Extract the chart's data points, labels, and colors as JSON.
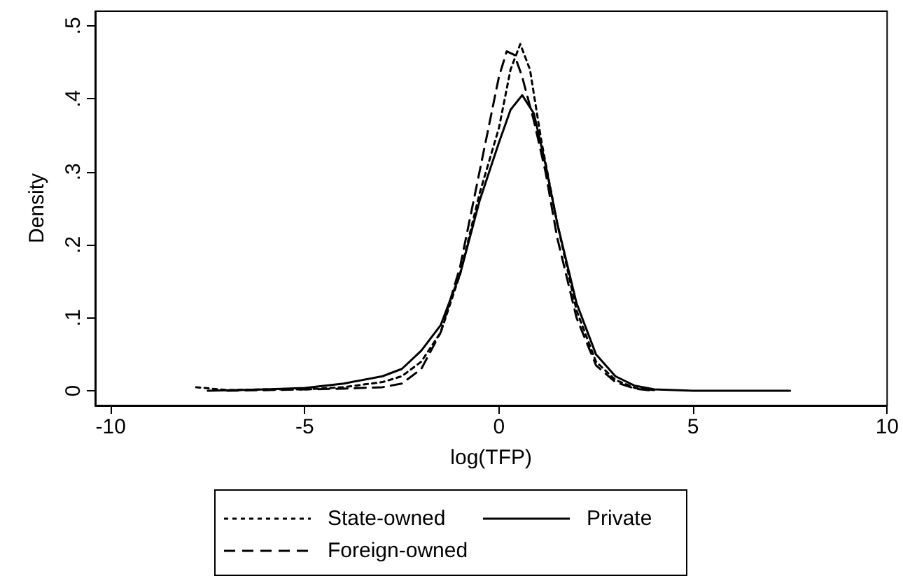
{
  "chart_data": {
    "type": "line",
    "xlabel": "log(TFP)",
    "ylabel": "Density",
    "xlim": [
      -10.4,
      10
    ],
    "xticks": [
      -10,
      -5,
      0,
      5,
      10
    ],
    "ylim": [
      -0.02,
      0.52
    ],
    "yticks": [
      {
        "value": 0,
        "label": "0"
      },
      {
        "value": 0.1,
        "label": ".1"
      },
      {
        "value": 0.2,
        "label": ".2"
      },
      {
        "value": 0.3,
        "label": ".3"
      },
      {
        "value": 0.4,
        "label": ".4"
      },
      {
        "value": 0.5,
        "label": ".5"
      }
    ],
    "grid": false,
    "legend": "bottom",
    "marker": "none",
    "series": [
      {
        "name": "State-owned",
        "color": "#000000",
        "line_style": "dotted",
        "x": [
          -7.8,
          -7,
          -6,
          -5,
          -4,
          -3,
          -2.5,
          -2,
          -1.5,
          -1,
          -0.5,
          0,
          0.3,
          0.55,
          0.8,
          1.1,
          1.5,
          2,
          2.5,
          3,
          3.5,
          4
        ],
        "values": [
          0.005,
          0.001,
          0.002,
          0.002,
          0.005,
          0.012,
          0.02,
          0.04,
          0.08,
          0.16,
          0.27,
          0.36,
          0.44,
          0.475,
          0.44,
          0.34,
          0.23,
          0.11,
          0.04,
          0.015,
          0.004,
          0.001
        ]
      },
      {
        "name": "Private",
        "color": "#000000",
        "line_style": "solid",
        "x": [
          -7.5,
          -6,
          -5,
          -4,
          -3,
          -2.5,
          -2,
          -1.5,
          -1,
          -0.5,
          0,
          0.3,
          0.6,
          0.9,
          1.2,
          1.5,
          2,
          2.5,
          3,
          3.5,
          4,
          5,
          7.5
        ],
        "values": [
          0,
          0.002,
          0.004,
          0.01,
          0.02,
          0.03,
          0.055,
          0.09,
          0.16,
          0.26,
          0.34,
          0.385,
          0.405,
          0.38,
          0.31,
          0.23,
          0.12,
          0.05,
          0.02,
          0.007,
          0.002,
          0,
          0
        ]
      },
      {
        "name": "Foreign-owned",
        "color": "#000000",
        "line_style": "dashed",
        "x": [
          -7,
          -5,
          -4,
          -3,
          -2.5,
          -2,
          -1.5,
          -1,
          -0.5,
          0,
          0.2,
          0.4,
          0.6,
          0.9,
          1.2,
          1.5,
          2,
          2.5,
          3,
          3.5,
          4
        ],
        "values": [
          0,
          0.002,
          0.003,
          0.005,
          0.01,
          0.03,
          0.08,
          0.17,
          0.3,
          0.43,
          0.465,
          0.46,
          0.43,
          0.37,
          0.3,
          0.21,
          0.1,
          0.035,
          0.012,
          0.003,
          0
        ]
      }
    ]
  }
}
